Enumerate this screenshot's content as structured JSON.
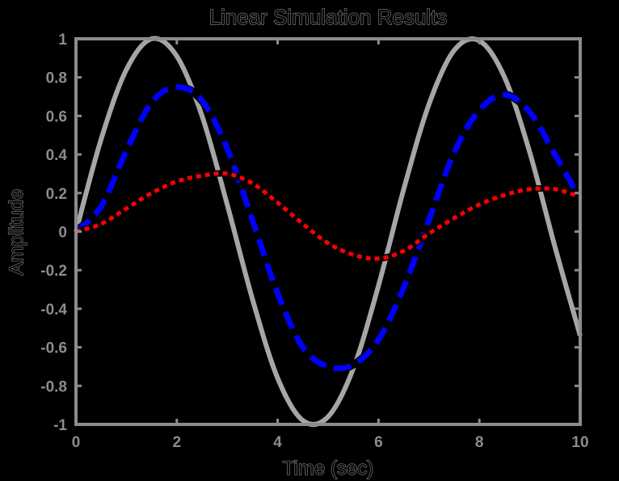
{
  "chart_data": {
    "type": "line",
    "title": "Linear Simulation Results",
    "xlabel": "Time (sec)",
    "ylabel": "Amplitude",
    "xlim": [
      0,
      10
    ],
    "ylim": [
      -1,
      1
    ],
    "xticks": [
      "0",
      "2",
      "4",
      "6",
      "8",
      "10"
    ],
    "yticks": [
      "-1",
      "-0.8",
      "-0.6",
      "-0.4",
      "-0.2",
      "0",
      "0.2",
      "0.4",
      "0.6",
      "0.8",
      "1"
    ],
    "grid": false,
    "x": [
      0,
      0.5,
      1,
      1.5,
      2,
      2.5,
      3,
      3.5,
      4,
      4.5,
      5,
      5.5,
      6,
      6.5,
      7,
      7.5,
      8,
      8.5,
      9,
      9.5,
      10
    ],
    "series": [
      {
        "style": "solid",
        "color": "#a6a6a6",
        "values": [
          0,
          0.48,
          0.84,
          1.0,
          0.91,
          0.6,
          0.14,
          -0.35,
          -0.76,
          -0.98,
          -0.96,
          -0.71,
          -0.28,
          0.22,
          0.66,
          0.94,
          0.99,
          0.8,
          0.41,
          -0.08,
          -0.54
        ]
      },
      {
        "style": "dashed",
        "color": "#0000ff",
        "values": [
          0,
          0.13,
          0.42,
          0.67,
          0.75,
          0.68,
          0.43,
          0.06,
          -0.32,
          -0.6,
          -0.7,
          -0.69,
          -0.56,
          -0.29,
          0.06,
          0.41,
          0.63,
          0.71,
          0.62,
          0.4,
          0.17
        ]
      },
      {
        "style": "dotted",
        "color": "#ff0000",
        "values": [
          0,
          0.04,
          0.12,
          0.2,
          0.26,
          0.29,
          0.3,
          0.25,
          0.15,
          0.04,
          -0.06,
          -0.12,
          -0.14,
          -0.1,
          -0.01,
          0.07,
          0.14,
          0.19,
          0.22,
          0.22,
          0.18
        ]
      }
    ]
  }
}
